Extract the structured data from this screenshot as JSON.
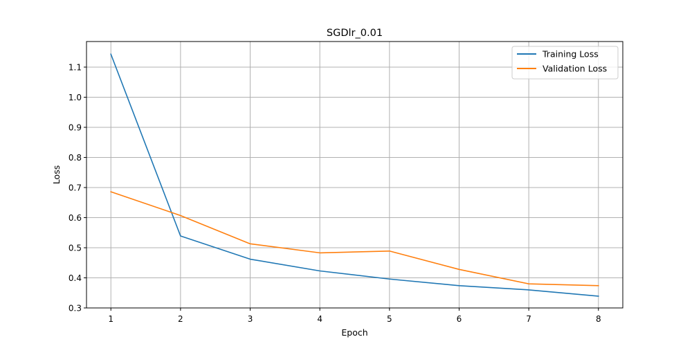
{
  "chart_data": {
    "type": "line",
    "title": "SGDlr_0.01",
    "xlabel": "Epoch",
    "ylabel": "Loss",
    "x": [
      1,
      2,
      3,
      4,
      5,
      6,
      7,
      8
    ],
    "xlim": [
      0.65,
      8.35
    ],
    "ylim": [
      0.3,
      1.185
    ],
    "xticks": [
      1,
      2,
      3,
      4,
      5,
      6,
      7,
      8
    ],
    "yticks": [
      0.3,
      0.4,
      0.5,
      0.6,
      0.7,
      0.8,
      0.9,
      1.0,
      1.1
    ],
    "ytick_labels": [
      "0.3",
      "0.4",
      "0.5",
      "0.6",
      "0.7",
      "0.8",
      "0.9",
      "1.0",
      "1.1"
    ],
    "grid": true,
    "legend_position": "top-right",
    "series": [
      {
        "name": "Training Loss",
        "color": "#1f77b4",
        "values": [
          1.143,
          0.539,
          0.462,
          0.423,
          0.396,
          0.374,
          0.36,
          0.339
        ]
      },
      {
        "name": "Validation Loss",
        "color": "#ff7f0e",
        "values": [
          0.686,
          0.607,
          0.513,
          0.483,
          0.489,
          0.428,
          0.38,
          0.374
        ]
      }
    ]
  }
}
